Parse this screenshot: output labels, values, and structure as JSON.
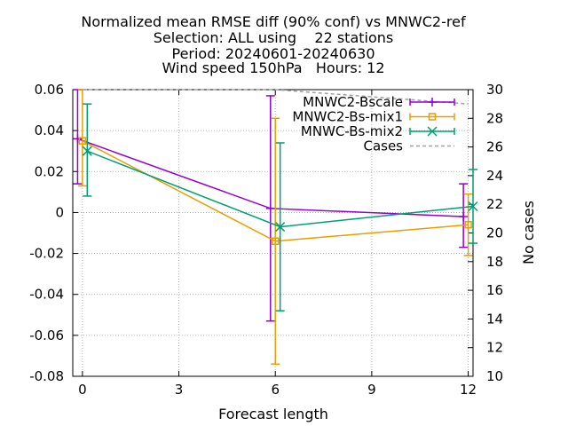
{
  "chart_data": {
    "type": "line",
    "title_lines": [
      "Normalized mean RMSE diff (90% conf) vs MNWC2-ref",
      "Selection: ALL using    22 stations",
      "Period: 20240601-20240630",
      "Wind speed 150hPa   Hours: 12"
    ],
    "xlabel": "Forecast length",
    "ylabel": "",
    "y2label": "No cases",
    "xlim": [
      -0.3,
      12.15
    ],
    "ylim": [
      -0.08,
      0.06
    ],
    "y2lim": [
      10,
      30
    ],
    "x_ticks": [
      0,
      3,
      6,
      9,
      12
    ],
    "y_ticks": [
      -0.08,
      -0.06,
      -0.04,
      -0.02,
      0,
      0.02,
      0.04,
      0.06
    ],
    "y_tick_labels": [
      "-0.08",
      "-0.06",
      "-0.04",
      "-0.02",
      "0",
      "0.02",
      "0.04",
      "0.06"
    ],
    "y2_ticks": [
      10,
      12,
      14,
      16,
      18,
      20,
      22,
      24,
      26,
      28,
      30
    ],
    "grid": true,
    "legend_position": "top-right",
    "series": [
      {
        "name": "MNWC2-Bscale",
        "color": "#9400d3",
        "marker": "plus",
        "x": [
          -0.15,
          5.85,
          11.85
        ],
        "y": [
          0.036,
          0.002,
          -0.002
        ],
        "err_low": [
          0.014,
          -0.053,
          -0.017
        ],
        "err_high": [
          0.06,
          0.057,
          0.014
        ]
      },
      {
        "name": "MNWC2-Bs-mix1",
        "color": "#e69f00",
        "marker": "square",
        "x": [
          0.0,
          6.0,
          12.0
        ],
        "y": [
          0.035,
          -0.014,
          -0.006
        ],
        "err_low": [
          0.013,
          -0.074,
          -0.021
        ],
        "err_high": [
          0.06,
          0.046,
          0.009
        ]
      },
      {
        "name": "MNWC-Bs-mix2",
        "color": "#009e73",
        "marker": "x",
        "x": [
          0.15,
          6.15,
          12.15
        ],
        "y": [
          0.03,
          -0.007,
          0.003
        ],
        "err_low": [
          0.008,
          -0.048,
          -0.015
        ],
        "err_high": [
          0.053,
          0.034,
          0.021
        ]
      },
      {
        "name": "Cases",
        "color": "#a0a0a4",
        "dashed": true,
        "axis": "y2",
        "x": [
          0,
          6,
          12
        ],
        "y": [
          30,
          30,
          29
        ]
      }
    ]
  }
}
